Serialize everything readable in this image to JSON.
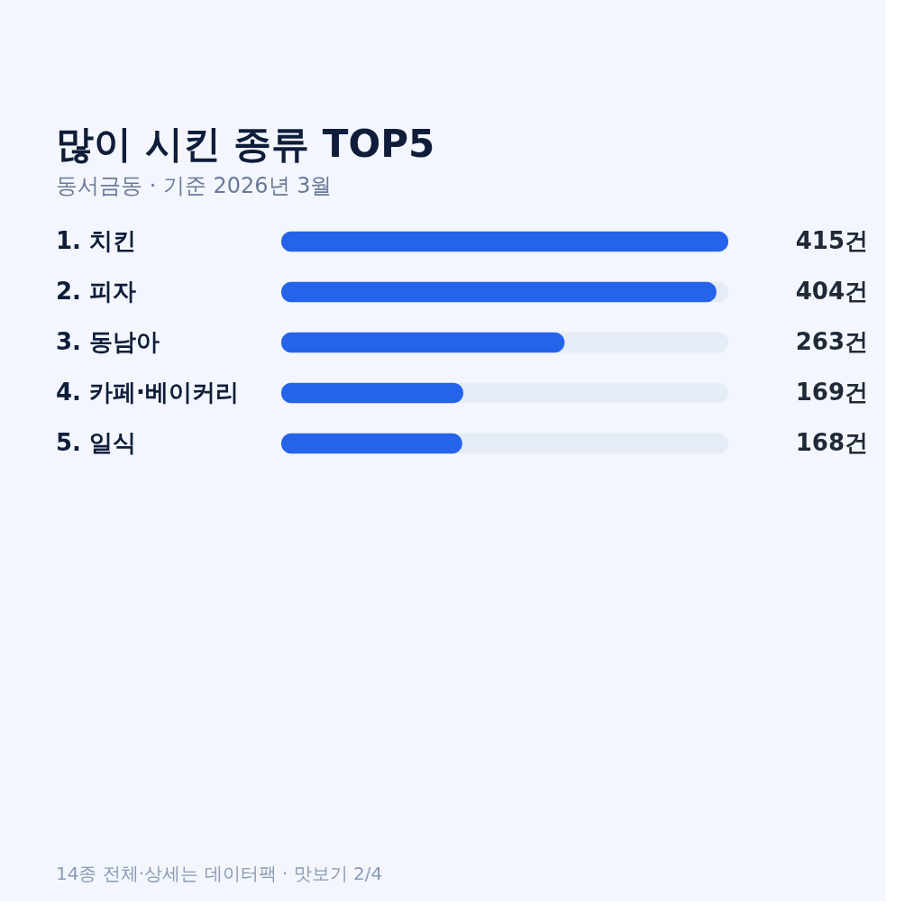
{
  "chart_data": {
    "type": "bar",
    "orientation": "horizontal",
    "title": "많이 시킨 종류 TOP5",
    "subtitle": "동서금동 · 기준 2026년 3월",
    "categories": [
      "1.  치킨",
      "2.  피자",
      "3.  동남아",
      "4.  카페·베이커리",
      "5.  일식"
    ],
    "values": [
      415,
      404,
      263,
      169,
      168
    ],
    "value_labels": [
      "415건",
      "404건",
      "263건",
      "169건",
      "168건"
    ],
    "color": "#2563eb",
    "xlim": [
      0,
      415
    ],
    "annotations": [
      "14종 전체·상세는 데이터팩 · 맛보기 2/4"
    ]
  }
}
